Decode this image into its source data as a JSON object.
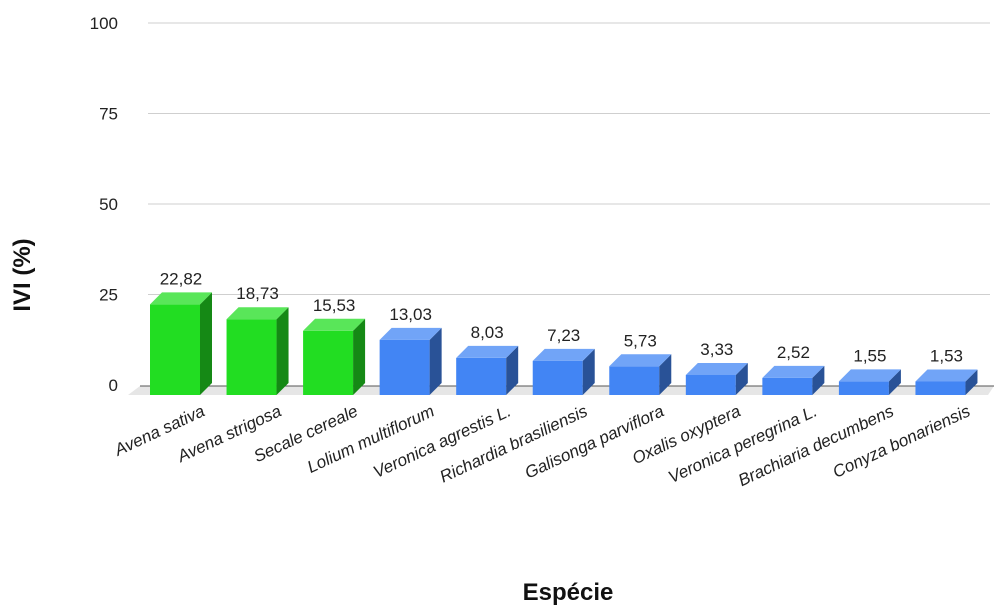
{
  "chart_data": {
    "type": "bar",
    "xlabel": "Espécie",
    "ylabel": "IVI (%)",
    "ylim": [
      0,
      100
    ],
    "yticks": [
      "0",
      "25",
      "50",
      "75",
      "100"
    ],
    "grid": true,
    "bar_style": "3d",
    "categories": [
      "Avena sativa",
      "Avena strigosa",
      "Secale cereale",
      "Lolium multiflorum",
      "Veronica agrestis L.",
      "Richardia brasiliensis",
      "Galisonga parviflora",
      "Oxalis oxyptera",
      "Veronica peregrina L.",
      "Brachiaria decumbens",
      "Conyza bonariensis"
    ],
    "values": [
      22.82,
      18.73,
      15.53,
      13.03,
      8.03,
      7.23,
      5.73,
      3.33,
      2.52,
      1.55,
      1.53
    ],
    "value_labels": [
      "22,82",
      "18,73",
      "15,53",
      "13,03",
      "8,03",
      "7,23",
      "5,73",
      "3,33",
      "2,52",
      "1,55",
      "1,53"
    ],
    "bar_colors": [
      "#22dd22",
      "#22dd22",
      "#22dd22",
      "#4285f4",
      "#4285f4",
      "#4285f4",
      "#4285f4",
      "#4285f4",
      "#4285f4",
      "#4285f4",
      "#4285f4"
    ]
  }
}
